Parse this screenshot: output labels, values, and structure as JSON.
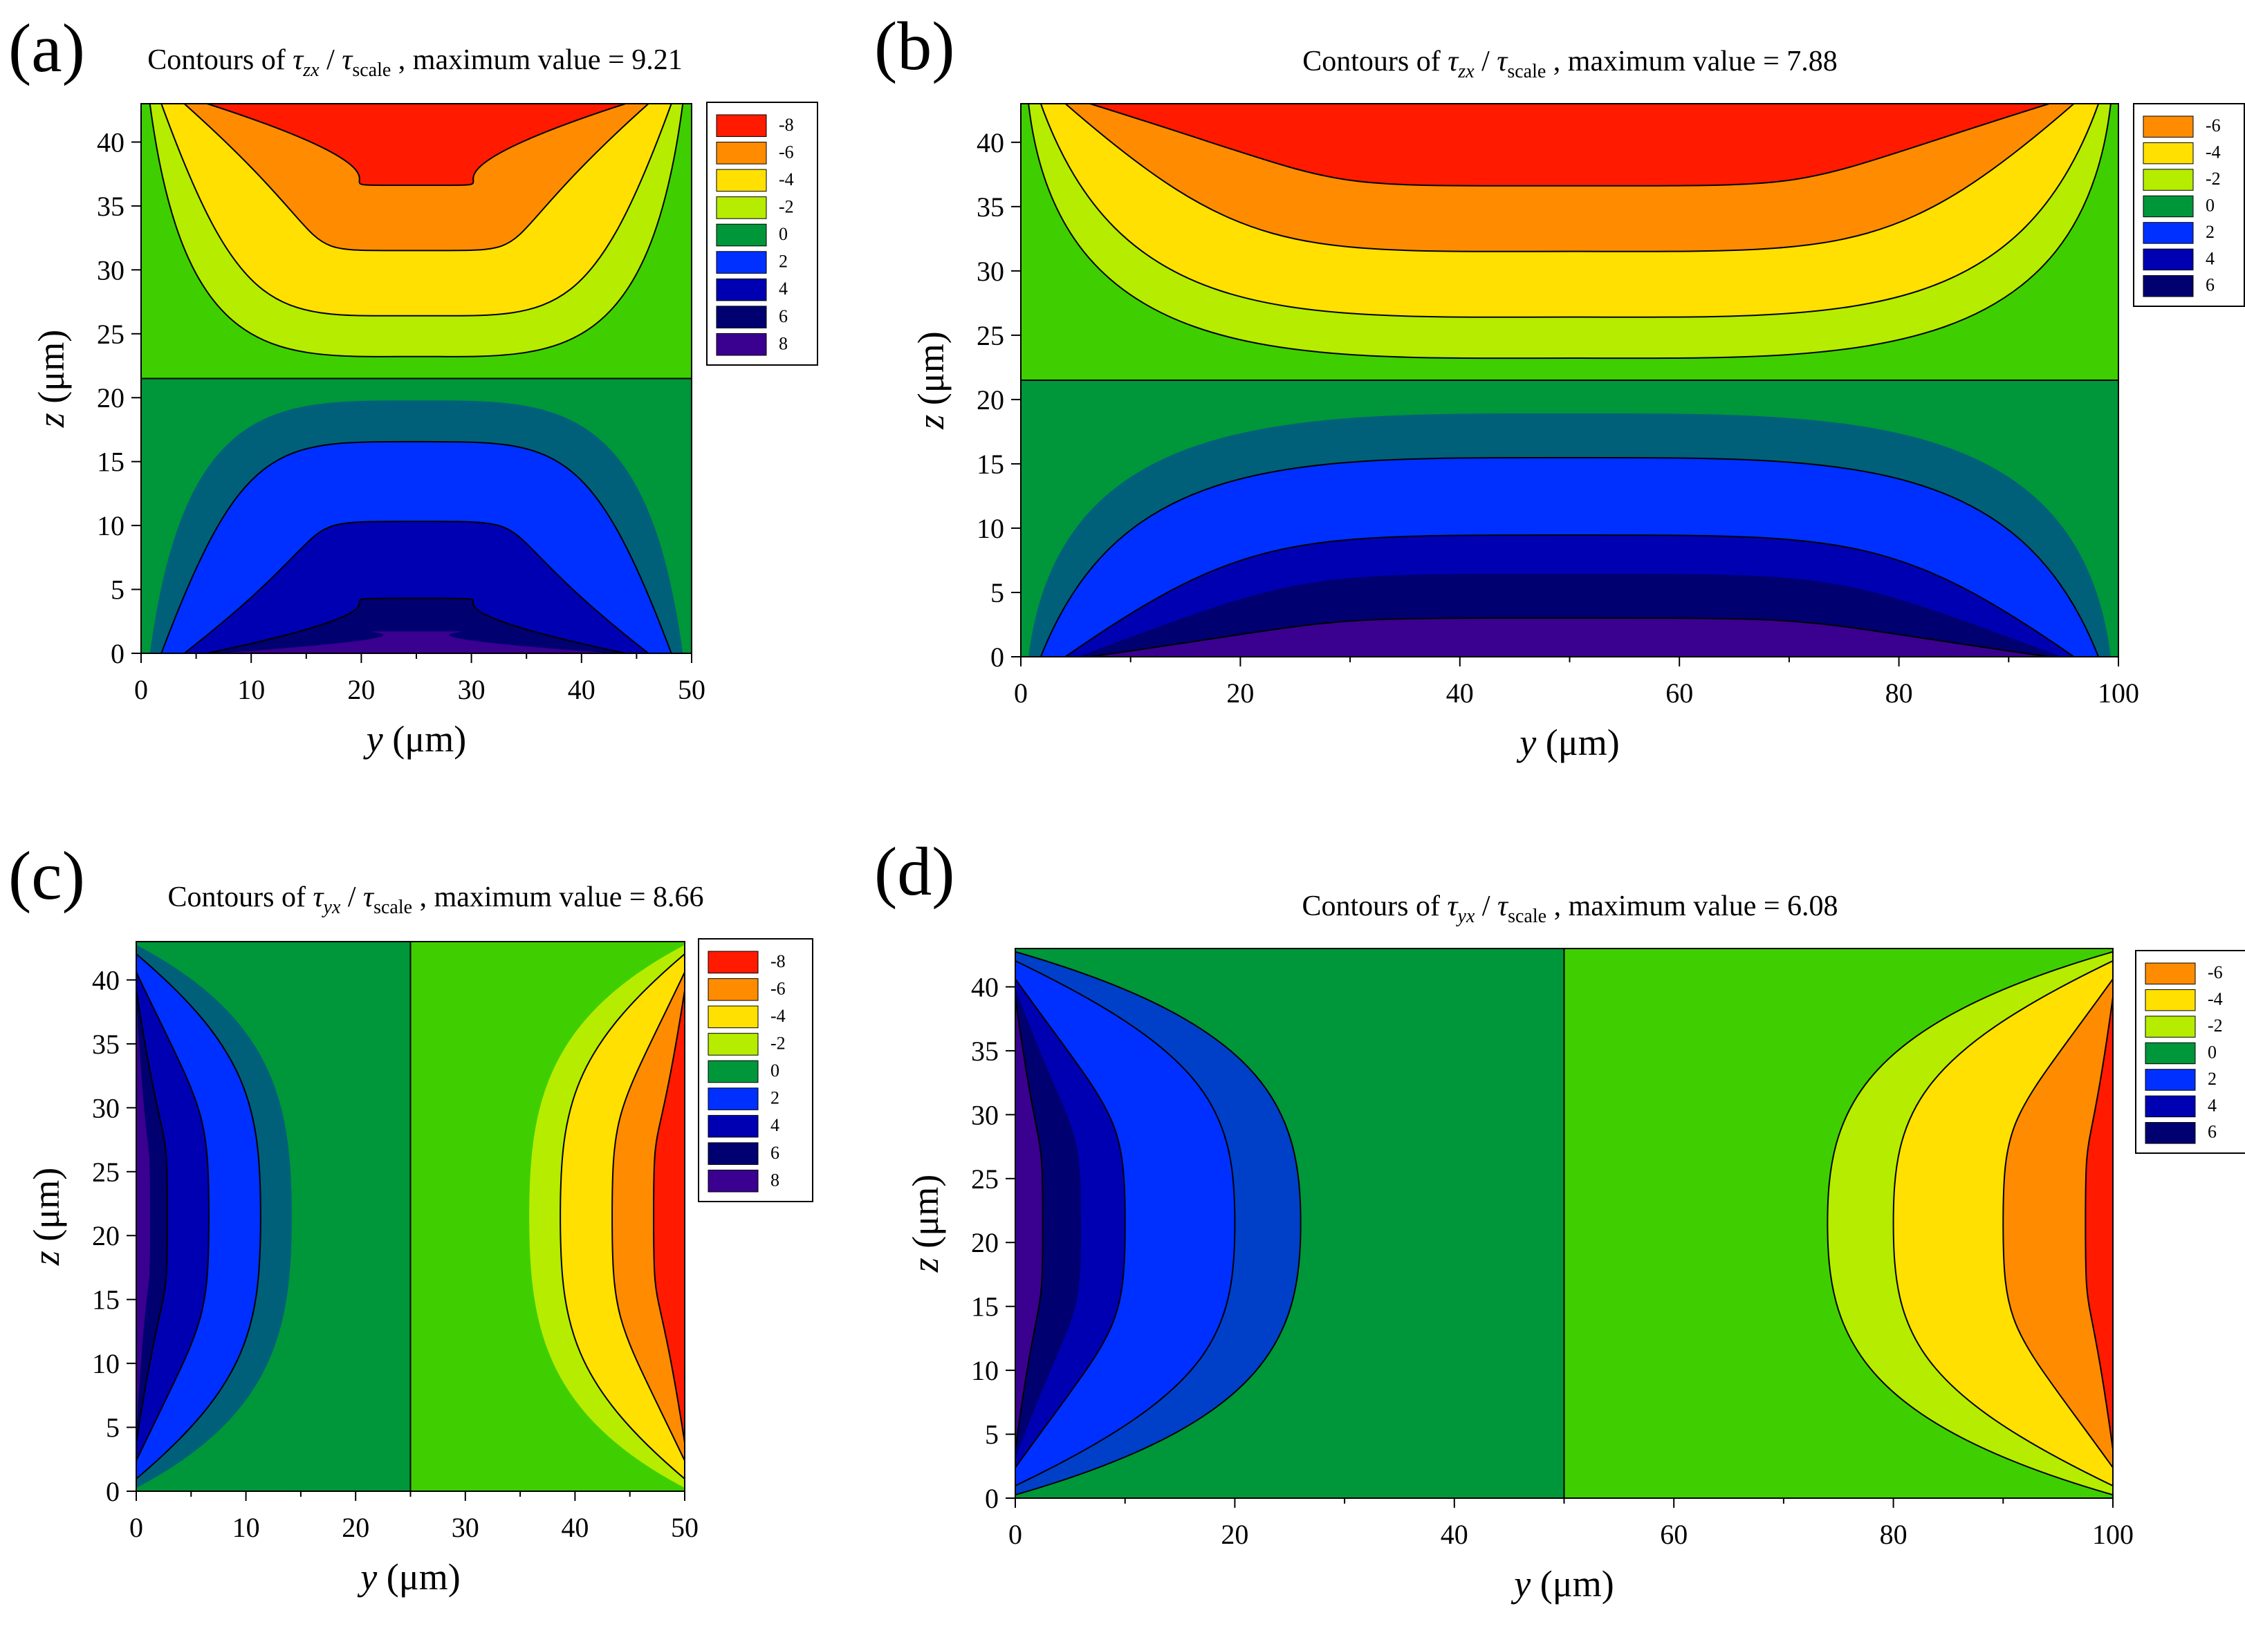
{
  "colors": {
    "m8": "#ff1a00",
    "m6": "#ff8c00",
    "m4": "#ffe000",
    "m2": "#b5ec00",
    "zeroNeg": "#3fcf00",
    "zero": "#00963a",
    "p2": "#0030ff",
    "p4": "#0000b3",
    "p6": "#000070",
    "p8": "#3a0090",
    "teal": "#00607a"
  },
  "chart_data": [
    {
      "type": "contour",
      "panel_label": "(a)",
      "title": {
        "prefix": "Contours of ",
        "symbol": "τ",
        "sub": "zx",
        "slash": " / ",
        "symbol2": "τ",
        "sub2": "scale",
        "suffix": " , maximum value = 9.21"
      },
      "field": "tau_zx",
      "max_value": 9.21,
      "xlabel_var": "y",
      "xlabel_unit": " (μm)",
      "ylabel_var": "z",
      "ylabel_unit": " (μm)",
      "xlim": [
        0,
        50
      ],
      "ylim": [
        0,
        43
      ],
      "xticks": [
        "0",
        "10",
        "20",
        "30",
        "40",
        "50"
      ],
      "yticks": [
        "0",
        "5",
        "10",
        "15",
        "20",
        "25",
        "30",
        "35",
        "40"
      ],
      "legend": [
        "-8",
        "-6",
        "-4",
        "-2",
        "0",
        "2",
        "4",
        "6",
        "8"
      ]
    },
    {
      "type": "contour",
      "panel_label": "(b)",
      "title": {
        "prefix": "Contours of ",
        "symbol": "τ",
        "sub": "zx",
        "slash": " / ",
        "symbol2": "τ",
        "sub2": "scale",
        "suffix": " , maximum value = 7.88"
      },
      "field": "tau_zx",
      "max_value": 7.88,
      "xlabel_var": "y",
      "xlabel_unit": " (μm)",
      "ylabel_var": "z",
      "ylabel_unit": " (μm)",
      "xlim": [
        0,
        100
      ],
      "ylim": [
        0,
        43
      ],
      "xticks": [
        "0",
        "20",
        "40",
        "60",
        "80",
        "100"
      ],
      "yticks": [
        "0",
        "5",
        "10",
        "15",
        "20",
        "25",
        "30",
        "35",
        "40"
      ],
      "legend": [
        "-6",
        "-4",
        "-2",
        "0",
        "2",
        "4",
        "6"
      ]
    },
    {
      "type": "contour",
      "panel_label": "(c)",
      "title": {
        "prefix": "Contours of ",
        "symbol": "τ",
        "sub": "yx",
        "slash": " / ",
        "symbol2": "τ",
        "sub2": "scale",
        "suffix": " , maximum value = 8.66"
      },
      "field": "tau_yx",
      "max_value": 8.66,
      "xlabel_var": "y",
      "xlabel_unit": " (μm)",
      "ylabel_var": "z",
      "ylabel_unit": " (μm)",
      "xlim": [
        0,
        50
      ],
      "ylim": [
        0,
        43
      ],
      "xticks": [
        "0",
        "10",
        "20",
        "30",
        "40",
        "50"
      ],
      "yticks": [
        "0",
        "5",
        "10",
        "15",
        "20",
        "25",
        "30",
        "35",
        "40"
      ],
      "legend": [
        "-8",
        "-6",
        "-4",
        "-2",
        "0",
        "2",
        "4",
        "6",
        "8"
      ]
    },
    {
      "type": "contour",
      "panel_label": "(d)",
      "title": {
        "prefix": "Contours of ",
        "symbol": "τ",
        "sub": "yx",
        "slash": " / ",
        "symbol2": "τ",
        "sub2": "scale",
        "suffix": " , maximum value = 6.08"
      },
      "field": "tau_yx",
      "max_value": 6.08,
      "xlabel_var": "y",
      "xlabel_unit": " (μm)",
      "ylabel_var": "z",
      "ylabel_unit": " (μm)",
      "xlim": [
        0,
        100
      ],
      "ylim": [
        0,
        43
      ],
      "xticks": [
        "0",
        "20",
        "40",
        "60",
        "80",
        "100"
      ],
      "yticks": [
        "0",
        "5",
        "10",
        "15",
        "20",
        "25",
        "30",
        "35",
        "40"
      ],
      "legend": [
        "-6",
        "-4",
        "-2",
        "0",
        "2",
        "4",
        "6"
      ]
    }
  ]
}
